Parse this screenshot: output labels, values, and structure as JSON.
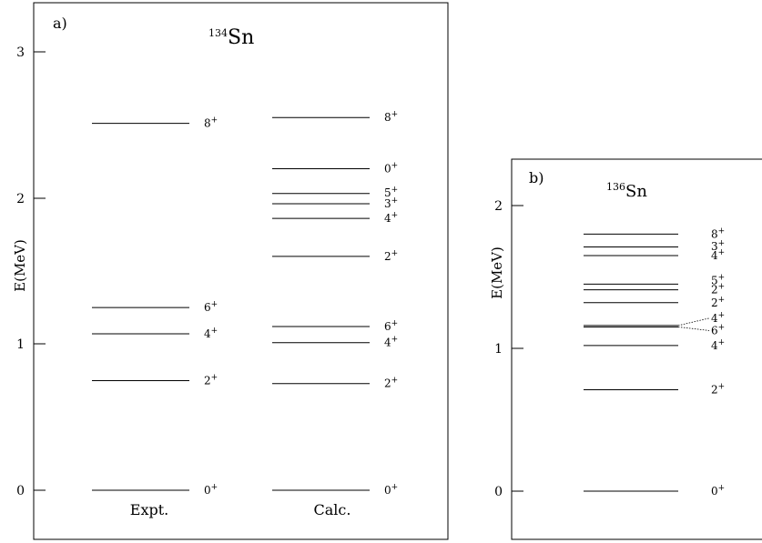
{
  "panels": [
    {
      "tag": "a)",
      "nucleus_mass": "134",
      "nucleus_symbol": "Sn",
      "ylabel": "E(MeV)",
      "yticks": [
        "0",
        "1",
        "2",
        "3"
      ],
      "columns": [
        {
          "label": "Expt.",
          "levels": [
            {
              "e": 0.0,
              "label": "0+"
            },
            {
              "e": 0.75,
              "label": "2+"
            },
            {
              "e": 1.07,
              "label": "4+"
            },
            {
              "e": 1.25,
              "label": "6+"
            },
            {
              "e": 2.51,
              "label": "8+"
            }
          ]
        },
        {
          "label": "Calc.",
          "levels": [
            {
              "e": 0.0,
              "label": "0+"
            },
            {
              "e": 0.73,
              "label": "2+"
            },
            {
              "e": 1.01,
              "label": "4+"
            },
            {
              "e": 1.12,
              "label": "6+"
            },
            {
              "e": 1.6,
              "label": "2+"
            },
            {
              "e": 1.86,
              "label": "4+"
            },
            {
              "e": 1.96,
              "label": "3+"
            },
            {
              "e": 2.03,
              "label": "5+"
            },
            {
              "e": 2.2,
              "label": "0+"
            },
            {
              "e": 2.55,
              "label": "8+"
            }
          ]
        }
      ]
    },
    {
      "tag": "b)",
      "nucleus_mass": "136",
      "nucleus_symbol": "Sn",
      "ylabel": "E(MeV)",
      "yticks": [
        "0",
        "1",
        "2"
      ],
      "columns": [
        {
          "label": "",
          "levels": [
            {
              "e": 0.0,
              "label": "0+"
            },
            {
              "e": 0.71,
              "label": "2+"
            },
            {
              "e": 1.02,
              "label": "4+"
            },
            {
              "e": 1.15,
              "label": "6+"
            },
            {
              "e": 1.16,
              "label": "4+"
            },
            {
              "e": 1.32,
              "label": "2+"
            },
            {
              "e": 1.41,
              "label": "2+"
            },
            {
              "e": 1.45,
              "label": "5+"
            },
            {
              "e": 1.65,
              "label": "4+"
            },
            {
              "e": 1.71,
              "label": "3+"
            },
            {
              "e": 1.8,
              "label": "8+"
            }
          ]
        }
      ]
    }
  ]
}
